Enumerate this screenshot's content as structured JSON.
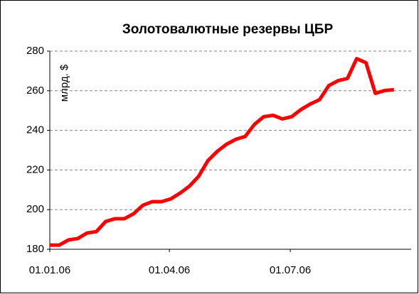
{
  "chart_data": {
    "type": "line",
    "title": "Золотовалютные резервы ЦБР",
    "ylabel": "млрд. $",
    "x": [
      0,
      7,
      14,
      21,
      28,
      35,
      42,
      49,
      56,
      63,
      70,
      77,
      84,
      91,
      98,
      105,
      112,
      119,
      126,
      133,
      140,
      147,
      154,
      161,
      168,
      175,
      182,
      189,
      196,
      203,
      210,
      217,
      224,
      231,
      238,
      245,
      252,
      259
    ],
    "series": [
      {
        "name": "Золотовалютные резервы",
        "color": "#ff0000",
        "values": [
          182.1,
          182.1,
          184.7,
          185.4,
          188.2,
          188.9,
          194,
          195.4,
          195.4,
          197.9,
          202.2,
          204,
          204,
          205.4,
          208.3,
          211.8,
          216.8,
          224.7,
          229.4,
          233,
          235.5,
          236.9,
          243,
          246.9,
          247.6,
          245.8,
          246.9,
          250.5,
          253.3,
          255.5,
          262.6,
          265.1,
          266.2,
          276.2,
          274.1,
          258.7,
          260.1,
          260.5
        ]
      }
    ],
    "xlim": [
      0,
      272
    ],
    "xticks": [
      {
        "value": 0,
        "label": "01.01.06"
      },
      {
        "value": 90,
        "label": "01.04.06"
      },
      {
        "value": 181,
        "label": "01.07.06"
      }
    ],
    "ylim": [
      180,
      280
    ],
    "yticks": [
      180,
      200,
      220,
      240,
      260,
      280
    ],
    "grid": true
  }
}
